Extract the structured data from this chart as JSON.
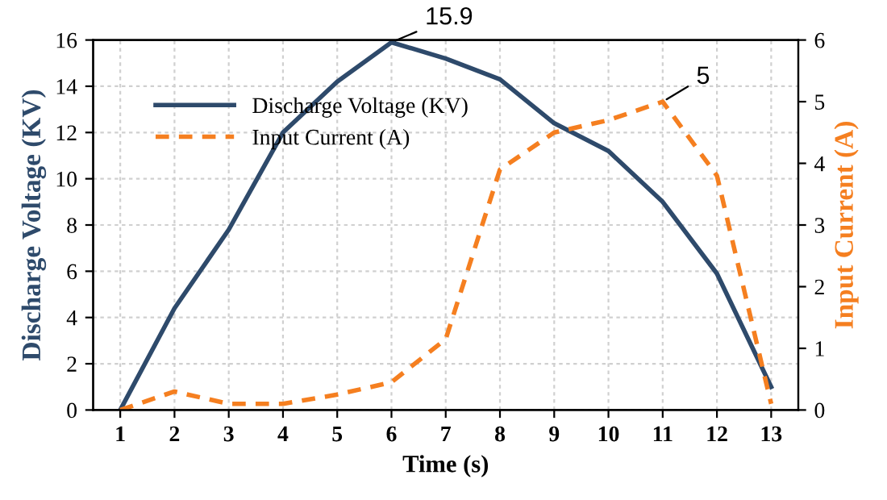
{
  "chart_data": {
    "type": "line",
    "categories": [
      "1",
      "2",
      "3",
      "4",
      "5",
      "6",
      "7",
      "8",
      "9",
      "10",
      "11",
      "12",
      "13"
    ],
    "series": [
      {
        "name": "Discharge Voltage (KV)",
        "color": "#2e4a6b",
        "line_style": "solid",
        "values": [
          0,
          4.4,
          7.8,
          12,
          14.2,
          15.9,
          15.2,
          14.3,
          12.4,
          11.2,
          9.0,
          5.9,
          1.0
        ]
      },
      {
        "name": "Input Current (A)",
        "color": "#f57f20",
        "line_style": "dashed",
        "axis": "y2",
        "values": [
          0,
          0.3,
          0.1,
          0.1,
          0.25,
          0.45,
          1.15,
          3.9,
          4.5,
          4.7,
          5.0,
          3.8,
          0.1
        ]
      }
    ],
    "xlabel": "Time (s)",
    "ylabel": "Discharge Voltage (KV)",
    "y2label": "Input Current (A)",
    "ylim": [
      0,
      16
    ],
    "yticks": [
      0,
      2,
      4,
      6,
      8,
      10,
      12,
      14,
      16
    ],
    "y2lim": [
      0,
      6
    ],
    "y2ticks": [
      0,
      1,
      2,
      3,
      4,
      5,
      6
    ],
    "annotations": [
      "15.9",
      "5"
    ],
    "grid": true,
    "legend": "top left",
    "marker": "none"
  }
}
